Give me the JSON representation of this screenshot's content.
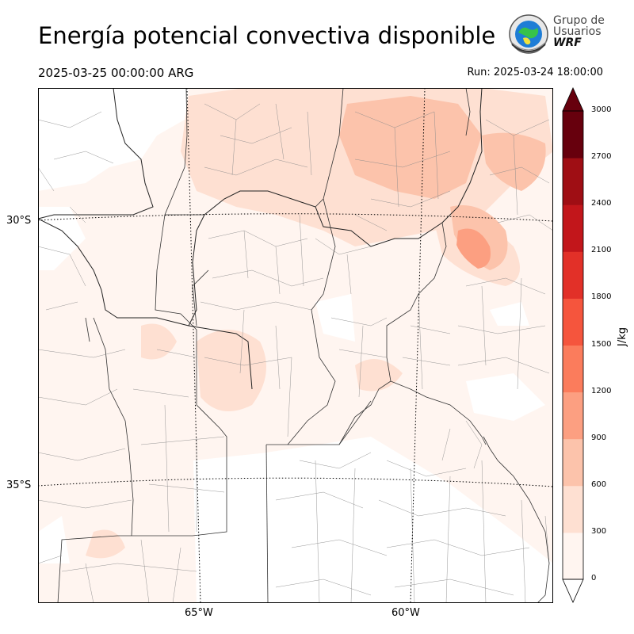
{
  "header": {
    "title": "Energía potencial convectiva disponible",
    "valid_time": "2025-03-25 00:00:00 ARG",
    "run_time": "Run: 2025-03-24 18:00:00"
  },
  "logo": {
    "line1": "Grupo de",
    "line2": "Usuarios",
    "line3": "WRF"
  },
  "axes": {
    "lat_labels": [
      "30°S",
      "35°S"
    ],
    "lon_labels": [
      "65°W",
      "60°W"
    ]
  },
  "colorbar": {
    "label": "J/kg",
    "ticks": [
      "0",
      "300",
      "600",
      "900",
      "1200",
      "1500",
      "1800",
      "2100",
      "2400",
      "2700",
      "3000"
    ],
    "colors": [
      "#fff5f0",
      "#fee0d2",
      "#fcc3ab",
      "#fc9f81",
      "#fb7c5c",
      "#f5553d",
      "#e23028",
      "#c2161b",
      "#9f0e14",
      "#67000d"
    ]
  },
  "field": {
    "units": "J/kg",
    "base_value_range": [
      0,
      300
    ],
    "max_region_value_range": [
      900,
      1200
    ]
  }
}
